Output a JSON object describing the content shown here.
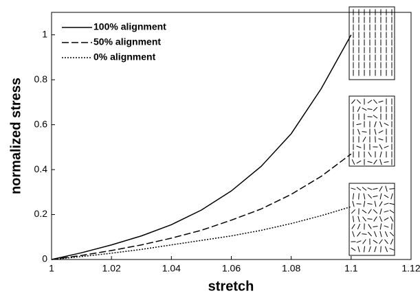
{
  "chart_data": {
    "type": "line",
    "x_label": "stretch",
    "y_label": "normalized stress",
    "x": [
      1,
      1.01,
      1.02,
      1.03,
      1.04,
      1.05,
      1.06,
      1.07,
      1.08,
      1.09,
      1.1
    ],
    "series": [
      {
        "name": "100% alignment",
        "color": "#000000",
        "line_style": "solid",
        "values": [
          0,
          0.03,
          0.065,
          0.105,
          0.155,
          0.22,
          0.305,
          0.415,
          0.56,
          0.76,
          1.0
        ]
      },
      {
        "name": "50% alignment",
        "color": "#000000",
        "line_style": "dashed",
        "values": [
          0,
          0.018,
          0.04,
          0.065,
          0.095,
          0.13,
          0.175,
          0.225,
          0.29,
          0.37,
          0.47
        ]
      },
      {
        "name": "0% alignment",
        "color": "#000000",
        "line_style": "dotted",
        "values": [
          0,
          0.013,
          0.028,
          0.045,
          0.065,
          0.085,
          0.105,
          0.13,
          0.16,
          0.195,
          0.235
        ]
      }
    ],
    "xlim": [
      1,
      1.12
    ],
    "xticks": [
      1,
      1.02,
      1.04,
      1.06,
      1.08,
      1.1,
      1.12
    ],
    "ylim": [
      0,
      1.1
    ],
    "yticks": [
      0,
      0.2,
      0.4,
      0.6,
      0.8,
      1
    ],
    "grid": false,
    "legend_position": "upper left"
  }
}
